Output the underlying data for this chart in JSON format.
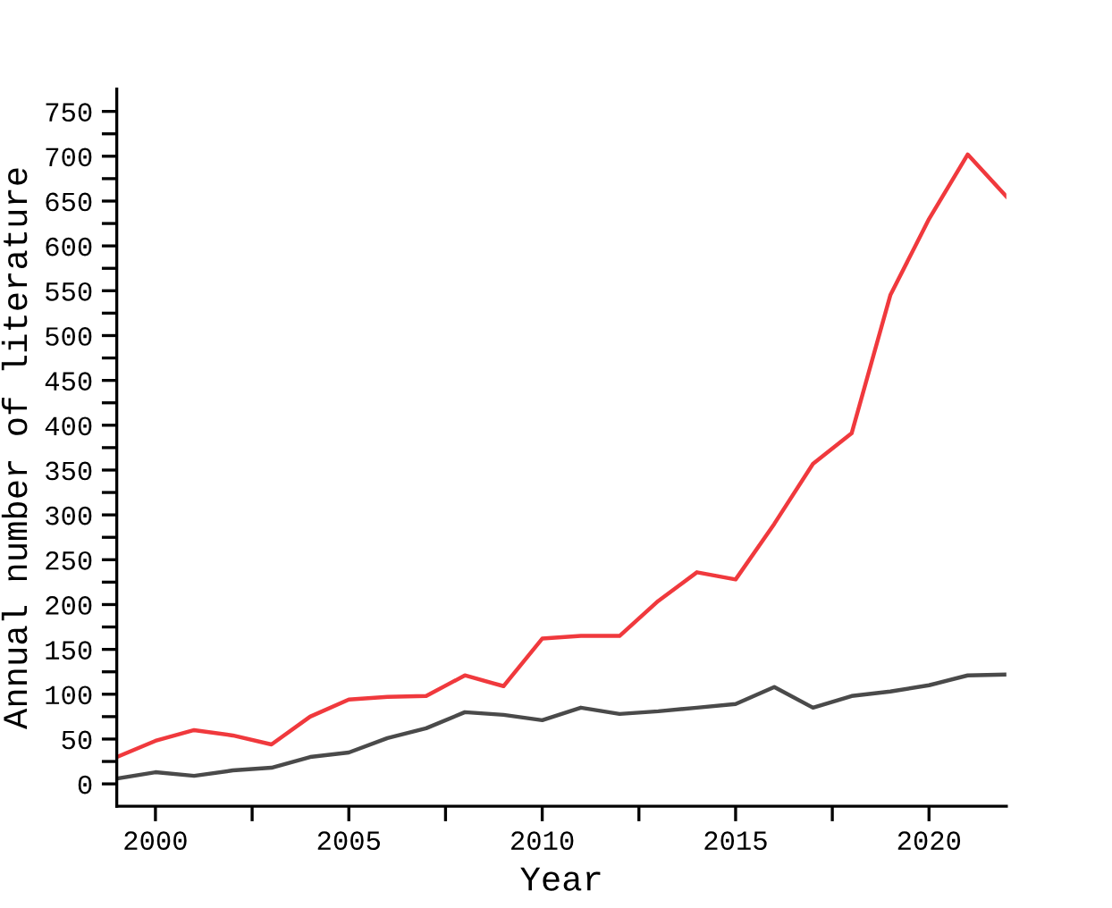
{
  "chart_data": {
    "type": "line",
    "xlabel": "Year",
    "ylabel": "Annual number of literature",
    "x": [
      1999,
      2000,
      2001,
      2002,
      2003,
      2004,
      2005,
      2006,
      2007,
      2008,
      2009,
      2010,
      2011,
      2012,
      2013,
      2014,
      2015,
      2016,
      2017,
      2018,
      2019,
      2020,
      2021,
      2022
    ],
    "series": [
      {
        "color": "#4a4a4a",
        "values": [
          6,
          13,
          9,
          15,
          18,
          30,
          35,
          51,
          62,
          80,
          77,
          71,
          85,
          78,
          81,
          85,
          89,
          108,
          85,
          98,
          103,
          110,
          121,
          122
        ]
      },
      {
        "color": "#f0393d",
        "values": [
          30,
          48,
          60,
          54,
          44,
          75,
          94,
          97,
          98,
          121,
          109,
          162,
          165,
          165,
          204,
          236,
          228,
          290,
          357,
          391,
          545,
          630,
          702,
          655
        ]
      }
    ],
    "xlim": [
      1999,
      2022
    ],
    "ylim": [
      -25,
      775
    ],
    "xticks": [
      2000,
      {
        "value": 2002.5,
        "label": null
      },
      2005,
      {
        "value": 2007.5,
        "label": null
      },
      2010,
      {
        "value": 2012.5,
        "label": null
      },
      2015,
      {
        "value": 2017.5,
        "label": null
      },
      2020
    ],
    "yticks": [
      0,
      {
        "value": 25,
        "label": null
      },
      50,
      {
        "value": 75,
        "label": null
      },
      100,
      {
        "value": 125,
        "label": null
      },
      150,
      {
        "value": 175,
        "label": null
      },
      200,
      {
        "value": 225,
        "label": null
      },
      250,
      {
        "value": 275,
        "label": null
      },
      300,
      {
        "value": 325,
        "label": null
      },
      350,
      {
        "value": 375,
        "label": null
      },
      400,
      {
        "value": 425,
        "label": null
      },
      450,
      {
        "value": 475,
        "label": null
      },
      500,
      {
        "value": 525,
        "label": null
      },
      550,
      {
        "value": 575,
        "label": null
      },
      600,
      {
        "value": 625,
        "label": null
      },
      650,
      {
        "value": 675,
        "label": null
      },
      700,
      {
        "value": 725,
        "label": null
      },
      750
    ],
    "grid": false,
    "line_style": "solid",
    "marker": "none"
  }
}
